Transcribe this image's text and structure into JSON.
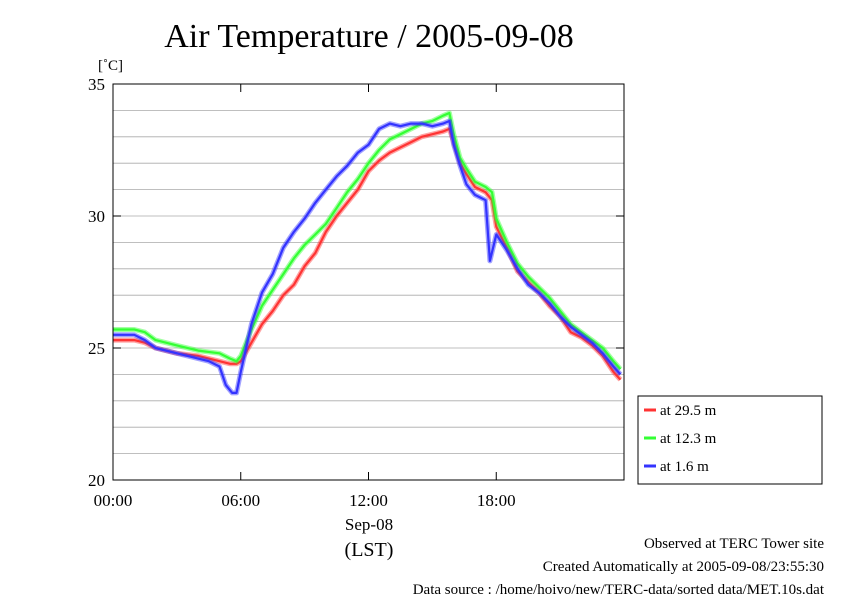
{
  "chart_data": {
    "type": "line",
    "title": "Air Temperature / 2005-09-08",
    "ylabel": "[˚C]",
    "xlabel": "Sep-08",
    "xlabel2": "(LST)",
    "xlim": [
      0,
      24
    ],
    "ylim": [
      20,
      35
    ],
    "x_ticks": [
      {
        "value": 0,
        "label": "00:00"
      },
      {
        "value": 6,
        "label": "06:00"
      },
      {
        "value": 12,
        "label": "12:00"
      },
      {
        "value": 18,
        "label": "18:00"
      }
    ],
    "y_ticks": [
      {
        "value": 20,
        "label": "20"
      },
      {
        "value": 25,
        "label": "25"
      },
      {
        "value": 30,
        "label": "30"
      },
      {
        "value": 35,
        "label": "35"
      }
    ],
    "y_gridlines": [
      21,
      22,
      23,
      24,
      25,
      26,
      27,
      28,
      29,
      30,
      31,
      32,
      33,
      34
    ],
    "grid": true,
    "legend_position": "bottom-right-outside",
    "series": [
      {
        "name": "at 29.5 m",
        "color": "#ff3333",
        "points": [
          [
            0,
            25.3
          ],
          [
            1,
            25.3
          ],
          [
            1.5,
            25.2
          ],
          [
            2,
            25.0
          ],
          [
            3,
            24.8
          ],
          [
            4,
            24.7
          ],
          [
            5,
            24.5
          ],
          [
            5.5,
            24.4
          ],
          [
            5.8,
            24.4
          ],
          [
            6,
            24.5
          ],
          [
            6.5,
            25.2
          ],
          [
            7,
            25.9
          ],
          [
            7.5,
            26.4
          ],
          [
            8,
            27.0
          ],
          [
            8.5,
            27.4
          ],
          [
            9,
            28.1
          ],
          [
            9.5,
            28.6
          ],
          [
            10,
            29.4
          ],
          [
            10.5,
            30.0
          ],
          [
            11,
            30.5
          ],
          [
            11.5,
            31.0
          ],
          [
            12,
            31.7
          ],
          [
            12.5,
            32.1
          ],
          [
            13,
            32.4
          ],
          [
            13.5,
            32.6
          ],
          [
            14,
            32.8
          ],
          [
            14.5,
            33.0
          ],
          [
            15,
            33.1
          ],
          [
            15.5,
            33.2
          ],
          [
            15.8,
            33.3
          ],
          [
            16,
            32.8
          ],
          [
            16.3,
            32.0
          ],
          [
            16.6,
            31.6
          ],
          [
            17,
            31.1
          ],
          [
            17.5,
            30.9
          ],
          [
            17.8,
            30.6
          ],
          [
            18,
            29.6
          ],
          [
            18.5,
            28.8
          ],
          [
            19,
            27.9
          ],
          [
            19.5,
            27.5
          ],
          [
            20,
            27.1
          ],
          [
            20.5,
            26.6
          ],
          [
            21,
            26.2
          ],
          [
            21.5,
            25.6
          ],
          [
            22,
            25.4
          ],
          [
            22.5,
            25.1
          ],
          [
            23,
            24.7
          ],
          [
            23.5,
            24.1
          ],
          [
            23.83,
            23.8
          ]
        ]
      },
      {
        "name": "at 12.3 m",
        "color": "#33ff33",
        "points": [
          [
            0,
            25.7
          ],
          [
            1,
            25.7
          ],
          [
            1.5,
            25.6
          ],
          [
            2,
            25.3
          ],
          [
            3,
            25.1
          ],
          [
            4,
            24.9
          ],
          [
            5,
            24.8
          ],
          [
            5.5,
            24.6
          ],
          [
            5.8,
            24.5
          ],
          [
            6,
            24.7
          ],
          [
            6.5,
            25.7
          ],
          [
            7,
            26.6
          ],
          [
            7.5,
            27.2
          ],
          [
            8,
            27.8
          ],
          [
            8.5,
            28.4
          ],
          [
            9,
            28.9
          ],
          [
            9.5,
            29.3
          ],
          [
            10,
            29.7
          ],
          [
            10.5,
            30.3
          ],
          [
            11,
            30.9
          ],
          [
            11.5,
            31.4
          ],
          [
            12,
            32.0
          ],
          [
            12.5,
            32.5
          ],
          [
            13,
            32.9
          ],
          [
            13.5,
            33.1
          ],
          [
            14,
            33.3
          ],
          [
            14.5,
            33.5
          ],
          [
            15,
            33.6
          ],
          [
            15.5,
            33.8
          ],
          [
            15.8,
            33.9
          ],
          [
            16,
            33.1
          ],
          [
            16.3,
            32.2
          ],
          [
            16.6,
            31.8
          ],
          [
            17,
            31.3
          ],
          [
            17.5,
            31.1
          ],
          [
            17.8,
            30.9
          ],
          [
            18,
            29.9
          ],
          [
            18.5,
            29.0
          ],
          [
            19,
            28.2
          ],
          [
            19.5,
            27.7
          ],
          [
            20,
            27.3
          ],
          [
            20.5,
            26.9
          ],
          [
            21,
            26.4
          ],
          [
            21.5,
            25.9
          ],
          [
            22,
            25.6
          ],
          [
            22.5,
            25.3
          ],
          [
            23,
            25.0
          ],
          [
            23.5,
            24.5
          ],
          [
            23.83,
            24.2
          ]
        ]
      },
      {
        "name": "at 1.6 m",
        "color": "#3333ff",
        "points": [
          [
            0,
            25.5
          ],
          [
            1,
            25.5
          ],
          [
            1.5,
            25.3
          ],
          [
            2,
            25.0
          ],
          [
            3,
            24.8
          ],
          [
            4,
            24.6
          ],
          [
            4.5,
            24.5
          ],
          [
            5,
            24.3
          ],
          [
            5.3,
            23.6
          ],
          [
            5.6,
            23.3
          ],
          [
            5.8,
            23.3
          ],
          [
            6,
            24.1
          ],
          [
            6.5,
            25.9
          ],
          [
            7,
            27.1
          ],
          [
            7.5,
            27.8
          ],
          [
            8,
            28.8
          ],
          [
            8.5,
            29.4
          ],
          [
            9,
            29.9
          ],
          [
            9.5,
            30.5
          ],
          [
            10,
            31.0
          ],
          [
            10.5,
            31.5
          ],
          [
            11,
            31.9
          ],
          [
            11.5,
            32.4
          ],
          [
            12,
            32.7
          ],
          [
            12.5,
            33.3
          ],
          [
            13,
            33.5
          ],
          [
            13.5,
            33.4
          ],
          [
            14,
            33.5
          ],
          [
            14.5,
            33.5
          ],
          [
            15,
            33.4
          ],
          [
            15.5,
            33.5
          ],
          [
            15.8,
            33.6
          ],
          [
            16,
            32.7
          ],
          [
            16.3,
            31.9
          ],
          [
            16.6,
            31.2
          ],
          [
            17,
            30.8
          ],
          [
            17.5,
            30.6
          ],
          [
            17.7,
            28.3
          ],
          [
            18,
            29.3
          ],
          [
            18.5,
            28.7
          ],
          [
            19,
            28.0
          ],
          [
            19.5,
            27.4
          ],
          [
            20,
            27.1
          ],
          [
            20.5,
            26.7
          ],
          [
            21,
            26.2
          ],
          [
            21.5,
            25.8
          ],
          [
            22,
            25.5
          ],
          [
            22.5,
            25.2
          ],
          [
            23,
            24.8
          ],
          [
            23.5,
            24.3
          ],
          [
            23.83,
            24.0
          ]
        ]
      }
    ]
  },
  "footer": {
    "line1": "Observed at TERC Tower site",
    "line2": "Created Automatically at 2005-09-08/23:55:30",
    "line3": "Data source : /home/hoivo/new/TERC-data/sorted  data/MET.10s.dat"
  }
}
